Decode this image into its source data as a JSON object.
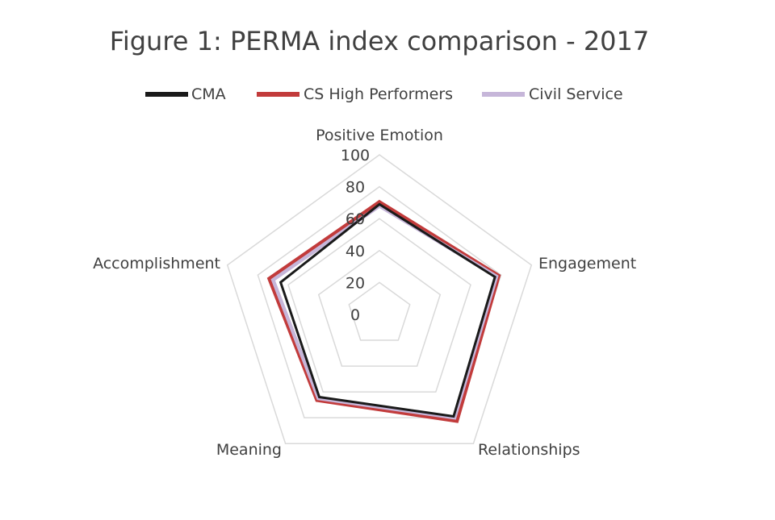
{
  "chart_data": {
    "type": "radar",
    "title": "Figure 1:  PERMA index comparison - 2017",
    "axes": [
      "Positive Emotion",
      "Engagement",
      "Relationships",
      "Meaning",
      "Accomplishment"
    ],
    "rlim": [
      0,
      100
    ],
    "ticks": [
      "0",
      "20",
      "40",
      "60",
      "80",
      "100"
    ],
    "tick_values": [
      0,
      20,
      40,
      60,
      80,
      100
    ],
    "legend_position": "top",
    "grid": true,
    "series": [
      {
        "name": "CMA",
        "color": "#1a1a1a",
        "values": [
          69,
          76,
          79,
          64,
          65
        ]
      },
      {
        "name": "CS High Performers",
        "color": "#c23b3b",
        "values": [
          70,
          78,
          82,
          66,
          72
        ]
      },
      {
        "name": "Civil Service",
        "color": "#c6b6d9",
        "values": [
          68,
          77,
          80,
          65,
          70
        ]
      }
    ]
  }
}
